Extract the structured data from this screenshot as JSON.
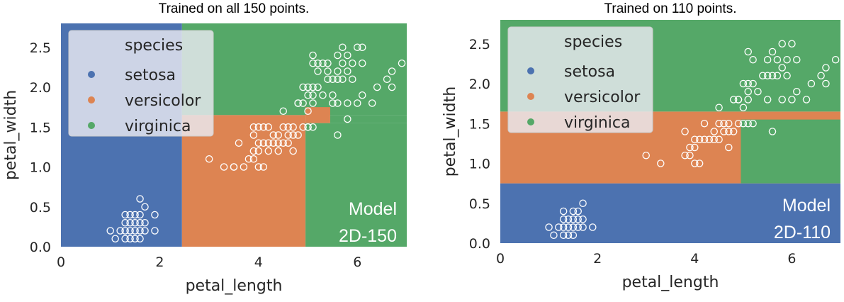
{
  "colors": {
    "setosa": "#4c72b0",
    "versicolor": "#dd8452",
    "virginica": "#55a868",
    "point_edge": "#ffffff",
    "legend_bg": "#eaeaf2"
  },
  "chart_data": [
    {
      "type": "scatter",
      "title": "Trained on all 150 points.",
      "xlabel": "petal_length",
      "ylabel": "petal_width",
      "xlim": [
        0,
        7
      ],
      "ylim": [
        0,
        2.8
      ],
      "xticks": [
        0,
        2,
        4,
        6
      ],
      "yticks": [
        0.0,
        0.5,
        1.0,
        1.5,
        2.0,
        2.5
      ],
      "legend": {
        "title": "species",
        "entries": [
          "setosa",
          "versicolor",
          "virginica"
        ],
        "placement": "top-left"
      },
      "annotation": [
        "Model",
        "2D-150"
      ],
      "regions": [
        {
          "class": "setosa",
          "x": [
            0,
            2.45
          ],
          "y": [
            0,
            2.8
          ]
        },
        {
          "class": "virginica",
          "x": [
            2.45,
            7
          ],
          "y": [
            1.65,
            2.8
          ]
        },
        {
          "class": "versicolor",
          "x": [
            2.45,
            4.95
          ],
          "y": [
            0,
            1.65
          ]
        },
        {
          "class": "virginica",
          "x": [
            4.95,
            7
          ],
          "y": [
            0,
            1.55
          ]
        },
        {
          "class": "versicolor",
          "x": [
            4.95,
            5.45
          ],
          "y": [
            1.55,
            1.75
          ]
        },
        {
          "class": "virginica",
          "x": [
            5.45,
            7
          ],
          "y": [
            1.55,
            1.65
          ]
        }
      ],
      "points": [
        [
          1.1,
          0.1
        ],
        [
          1.3,
          0.1
        ],
        [
          1.4,
          0.1
        ],
        [
          1.5,
          0.1
        ],
        [
          1.6,
          0.1
        ],
        [
          1.0,
          0.2
        ],
        [
          1.2,
          0.2
        ],
        [
          1.3,
          0.2
        ],
        [
          1.4,
          0.2
        ],
        [
          1.5,
          0.2
        ],
        [
          1.6,
          0.2
        ],
        [
          1.7,
          0.2
        ],
        [
          1.9,
          0.2
        ],
        [
          1.3,
          0.3
        ],
        [
          1.4,
          0.3
        ],
        [
          1.5,
          0.3
        ],
        [
          1.6,
          0.3
        ],
        [
          1.7,
          0.3
        ],
        [
          1.3,
          0.4
        ],
        [
          1.4,
          0.4
        ],
        [
          1.5,
          0.4
        ],
        [
          1.6,
          0.4
        ],
        [
          1.9,
          0.4
        ],
        [
          1.7,
          0.5
        ],
        [
          1.6,
          0.6
        ],
        [
          3.0,
          1.1
        ],
        [
          3.3,
          1.0
        ],
        [
          3.5,
          1.0
        ],
        [
          3.7,
          1.0
        ],
        [
          3.9,
          1.1
        ],
        [
          3.5,
          1.0
        ],
        [
          4.0,
          1.0
        ],
        [
          4.1,
          1.0
        ],
        [
          3.6,
          1.3
        ],
        [
          3.8,
          1.1
        ],
        [
          3.9,
          1.2
        ],
        [
          3.9,
          1.4
        ],
        [
          4.0,
          1.2
        ],
        [
          4.0,
          1.3
        ],
        [
          4.1,
          1.3
        ],
        [
          4.2,
          1.2
        ],
        [
          4.2,
          1.3
        ],
        [
          4.3,
          1.3
        ],
        [
          4.4,
          1.2
        ],
        [
          4.4,
          1.3
        ],
        [
          4.4,
          1.4
        ],
        [
          4.5,
          1.3
        ],
        [
          4.5,
          1.5
        ],
        [
          4.6,
          1.3
        ],
        [
          4.6,
          1.4
        ],
        [
          4.6,
          1.5
        ],
        [
          4.7,
          1.2
        ],
        [
          4.7,
          1.4
        ],
        [
          4.7,
          1.5
        ],
        [
          4.8,
          1.4
        ],
        [
          4.8,
          1.8
        ],
        [
          4.9,
          1.5
        ],
        [
          4.5,
          1.7
        ],
        [
          4.2,
          1.5
        ],
        [
          4.1,
          1.5
        ],
        [
          4.0,
          1.5
        ],
        [
          4.3,
          1.4
        ],
        [
          3.9,
          1.5
        ],
        [
          5.0,
          1.5
        ],
        [
          5.1,
          1.5
        ],
        [
          5.0,
          1.7
        ],
        [
          4.8,
          1.8
        ],
        [
          4.9,
          1.8
        ],
        [
          5.1,
          1.8
        ],
        [
          5.5,
          1.8
        ],
        [
          5.1,
          1.9
        ],
        [
          4.9,
          2.0
        ],
        [
          5.0,
          2.0
        ],
        [
          5.1,
          2.0
        ],
        [
          5.0,
          1.9
        ],
        [
          5.1,
          2.3
        ],
        [
          5.2,
          2.0
        ],
        [
          5.2,
          2.3
        ],
        [
          5.3,
          1.9
        ],
        [
          5.3,
          2.3
        ],
        [
          5.4,
          2.1
        ],
        [
          5.4,
          2.3
        ],
        [
          5.5,
          2.1
        ],
        [
          5.6,
          1.8
        ],
        [
          5.6,
          2.1
        ],
        [
          5.6,
          2.2
        ],
        [
          5.6,
          2.4
        ],
        [
          5.7,
          2.1
        ],
        [
          5.7,
          2.3
        ],
        [
          5.7,
          2.5
        ],
        [
          5.8,
          1.8
        ],
        [
          5.8,
          2.2
        ],
        [
          5.9,
          2.1
        ],
        [
          5.9,
          2.3
        ],
        [
          6.0,
          1.8
        ],
        [
          6.0,
          2.5
        ],
        [
          6.1,
          1.9
        ],
        [
          6.1,
          2.3
        ],
        [
          6.1,
          2.5
        ],
        [
          5.1,
          2.4
        ],
        [
          5.0,
          1.5
        ],
        [
          5.8,
          1.6
        ],
        [
          6.3,
          1.8
        ],
        [
          6.4,
          2.0
        ],
        [
          6.6,
          2.1
        ],
        [
          6.7,
          2.0
        ],
        [
          6.7,
          2.2
        ],
        [
          6.9,
          2.3
        ],
        [
          5.6,
          1.4
        ],
        [
          5.8,
          2.4
        ],
        [
          5.5,
          1.9
        ],
        [
          5.2,
          2.2
        ],
        [
          5.4,
          2.2
        ]
      ]
    },
    {
      "type": "scatter",
      "title": "Trained on 110 points.",
      "xlabel": "petal_length",
      "ylabel": "petal_width",
      "xlim": [
        0,
        7
      ],
      "ylim": [
        0,
        2.8
      ],
      "xticks": [
        0,
        2,
        4,
        6
      ],
      "yticks": [
        0.0,
        0.5,
        1.0,
        1.5,
        2.0,
        2.5
      ],
      "legend": {
        "title": "species",
        "entries": [
          "setosa",
          "versicolor",
          "virginica"
        ],
        "placement": "top-left"
      },
      "annotation": [
        "Model",
        "2D-110"
      ],
      "regions": [
        {
          "class": "setosa",
          "x": [
            0,
            7
          ],
          "y": [
            0,
            0.75
          ]
        },
        {
          "class": "versicolor",
          "x": [
            0,
            7
          ],
          "y": [
            0.75,
            1.65
          ]
        },
        {
          "class": "virginica",
          "x": [
            0,
            7
          ],
          "y": [
            1.65,
            2.8
          ]
        },
        {
          "class": "virginica",
          "x": [
            4.95,
            7
          ],
          "y": [
            0.75,
            1.55
          ]
        }
      ],
      "points": [
        [
          1.1,
          0.1
        ],
        [
          1.3,
          0.1
        ],
        [
          1.4,
          0.1
        ],
        [
          1.5,
          0.1
        ],
        [
          1.0,
          0.2
        ],
        [
          1.2,
          0.2
        ],
        [
          1.3,
          0.2
        ],
        [
          1.4,
          0.2
        ],
        [
          1.5,
          0.2
        ],
        [
          1.6,
          0.2
        ],
        [
          1.7,
          0.2
        ],
        [
          1.9,
          0.2
        ],
        [
          1.3,
          0.3
        ],
        [
          1.4,
          0.3
        ],
        [
          1.5,
          0.3
        ],
        [
          1.6,
          0.3
        ],
        [
          1.7,
          0.3
        ],
        [
          1.3,
          0.4
        ],
        [
          1.5,
          0.4
        ],
        [
          1.6,
          0.4
        ],
        [
          1.7,
          0.5
        ],
        [
          3.0,
          1.1
        ],
        [
          3.3,
          1.0
        ],
        [
          3.9,
          1.1
        ],
        [
          3.8,
          1.1
        ],
        [
          4.0,
          1.0
        ],
        [
          4.1,
          1.0
        ],
        [
          3.9,
          1.2
        ],
        [
          4.0,
          1.2
        ],
        [
          4.0,
          1.3
        ],
        [
          4.1,
          1.3
        ],
        [
          4.2,
          1.3
        ],
        [
          4.3,
          1.3
        ],
        [
          4.4,
          1.3
        ],
        [
          4.5,
          1.3
        ],
        [
          4.4,
          1.4
        ],
        [
          4.5,
          1.5
        ],
        [
          4.6,
          1.4
        ],
        [
          4.7,
          1.4
        ],
        [
          4.7,
          1.2
        ],
        [
          4.5,
          1.7
        ],
        [
          4.8,
          1.4
        ],
        [
          4.9,
          1.5
        ],
        [
          3.8,
          1.4
        ],
        [
          4.2,
          1.5
        ],
        [
          4.6,
          1.5
        ],
        [
          4.7,
          1.5
        ],
        [
          4.8,
          1.8
        ],
        [
          4.9,
          1.8
        ],
        [
          5.0,
          1.7
        ],
        [
          5.1,
          1.5
        ],
        [
          5.0,
          1.5
        ],
        [
          5.2,
          1.5
        ],
        [
          5.1,
          1.8
        ],
        [
          5.0,
          2.0
        ],
        [
          5.1,
          2.0
        ],
        [
          4.9,
          1.8
        ],
        [
          5.1,
          1.9
        ],
        [
          5.2,
          2.0
        ],
        [
          5.3,
          1.9
        ],
        [
          5.1,
          2.4
        ],
        [
          5.2,
          2.3
        ],
        [
          5.4,
          2.1
        ],
        [
          5.5,
          2.1
        ],
        [
          5.5,
          1.8
        ],
        [
          5.6,
          2.1
        ],
        [
          5.6,
          2.4
        ],
        [
          5.7,
          2.1
        ],
        [
          5.7,
          2.3
        ],
        [
          5.8,
          2.2
        ],
        [
          5.8,
          1.8
        ],
        [
          5.9,
          2.1
        ],
        [
          5.9,
          2.3
        ],
        [
          6.0,
          1.8
        ],
        [
          6.0,
          2.5
        ],
        [
          5.8,
          2.5
        ],
        [
          6.1,
          2.3
        ],
        [
          6.1,
          1.9
        ],
        [
          5.6,
          1.4
        ],
        [
          6.3,
          1.8
        ],
        [
          6.4,
          2.0
        ],
        [
          6.6,
          2.1
        ],
        [
          6.7,
          2.0
        ],
        [
          6.7,
          2.2
        ],
        [
          6.9,
          2.3
        ],
        [
          5.5,
          2.3
        ]
      ]
    }
  ]
}
